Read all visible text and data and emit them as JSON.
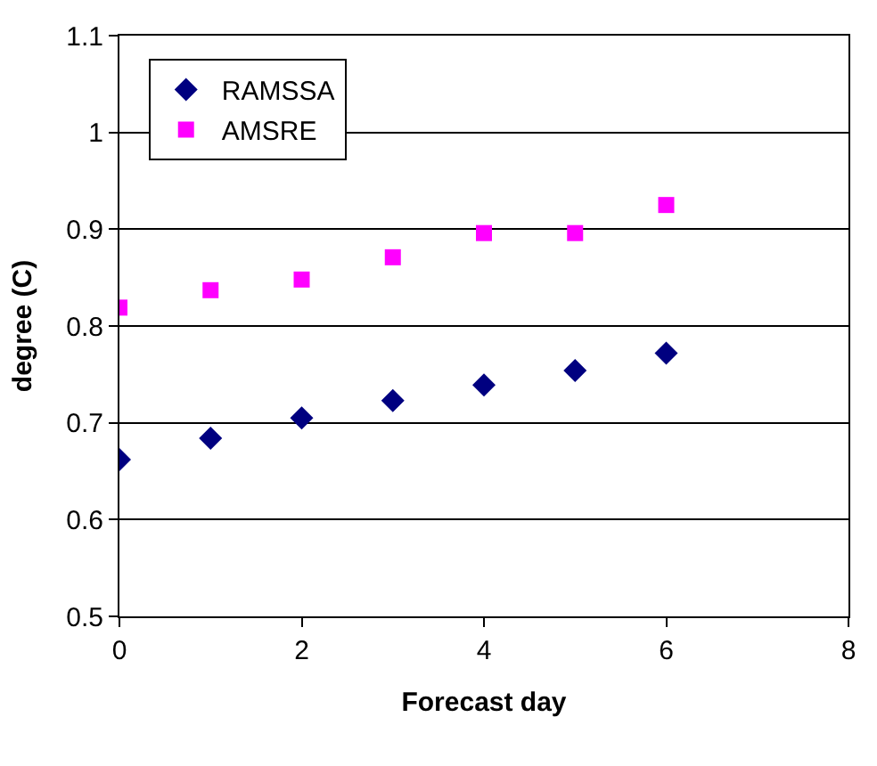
{
  "chart_data": {
    "type": "scatter",
    "xlabel": "Forecast day",
    "ylabel": "degree (C)",
    "x": [
      0,
      1,
      2,
      3,
      4,
      5,
      6
    ],
    "series": [
      {
        "name": "RAMSSA",
        "color": "#000080",
        "marker": "diamond",
        "values": [
          0.662,
          0.684,
          0.705,
          0.723,
          0.739,
          0.754,
          0.772
        ]
      },
      {
        "name": "AMSRE",
        "color": "#ff00ff",
        "marker": "square",
        "values": [
          0.819,
          0.837,
          0.848,
          0.871,
          0.896,
          0.896,
          0.925
        ]
      }
    ],
    "xlim": [
      0,
      8
    ],
    "xticks": [
      0,
      2,
      4,
      6,
      8
    ],
    "ylim": [
      0.5,
      1.1
    ],
    "yticks": [
      0.5,
      0.6,
      0.7,
      0.8,
      0.9,
      1,
      1.1
    ],
    "grid": "y",
    "legend": "top left"
  }
}
